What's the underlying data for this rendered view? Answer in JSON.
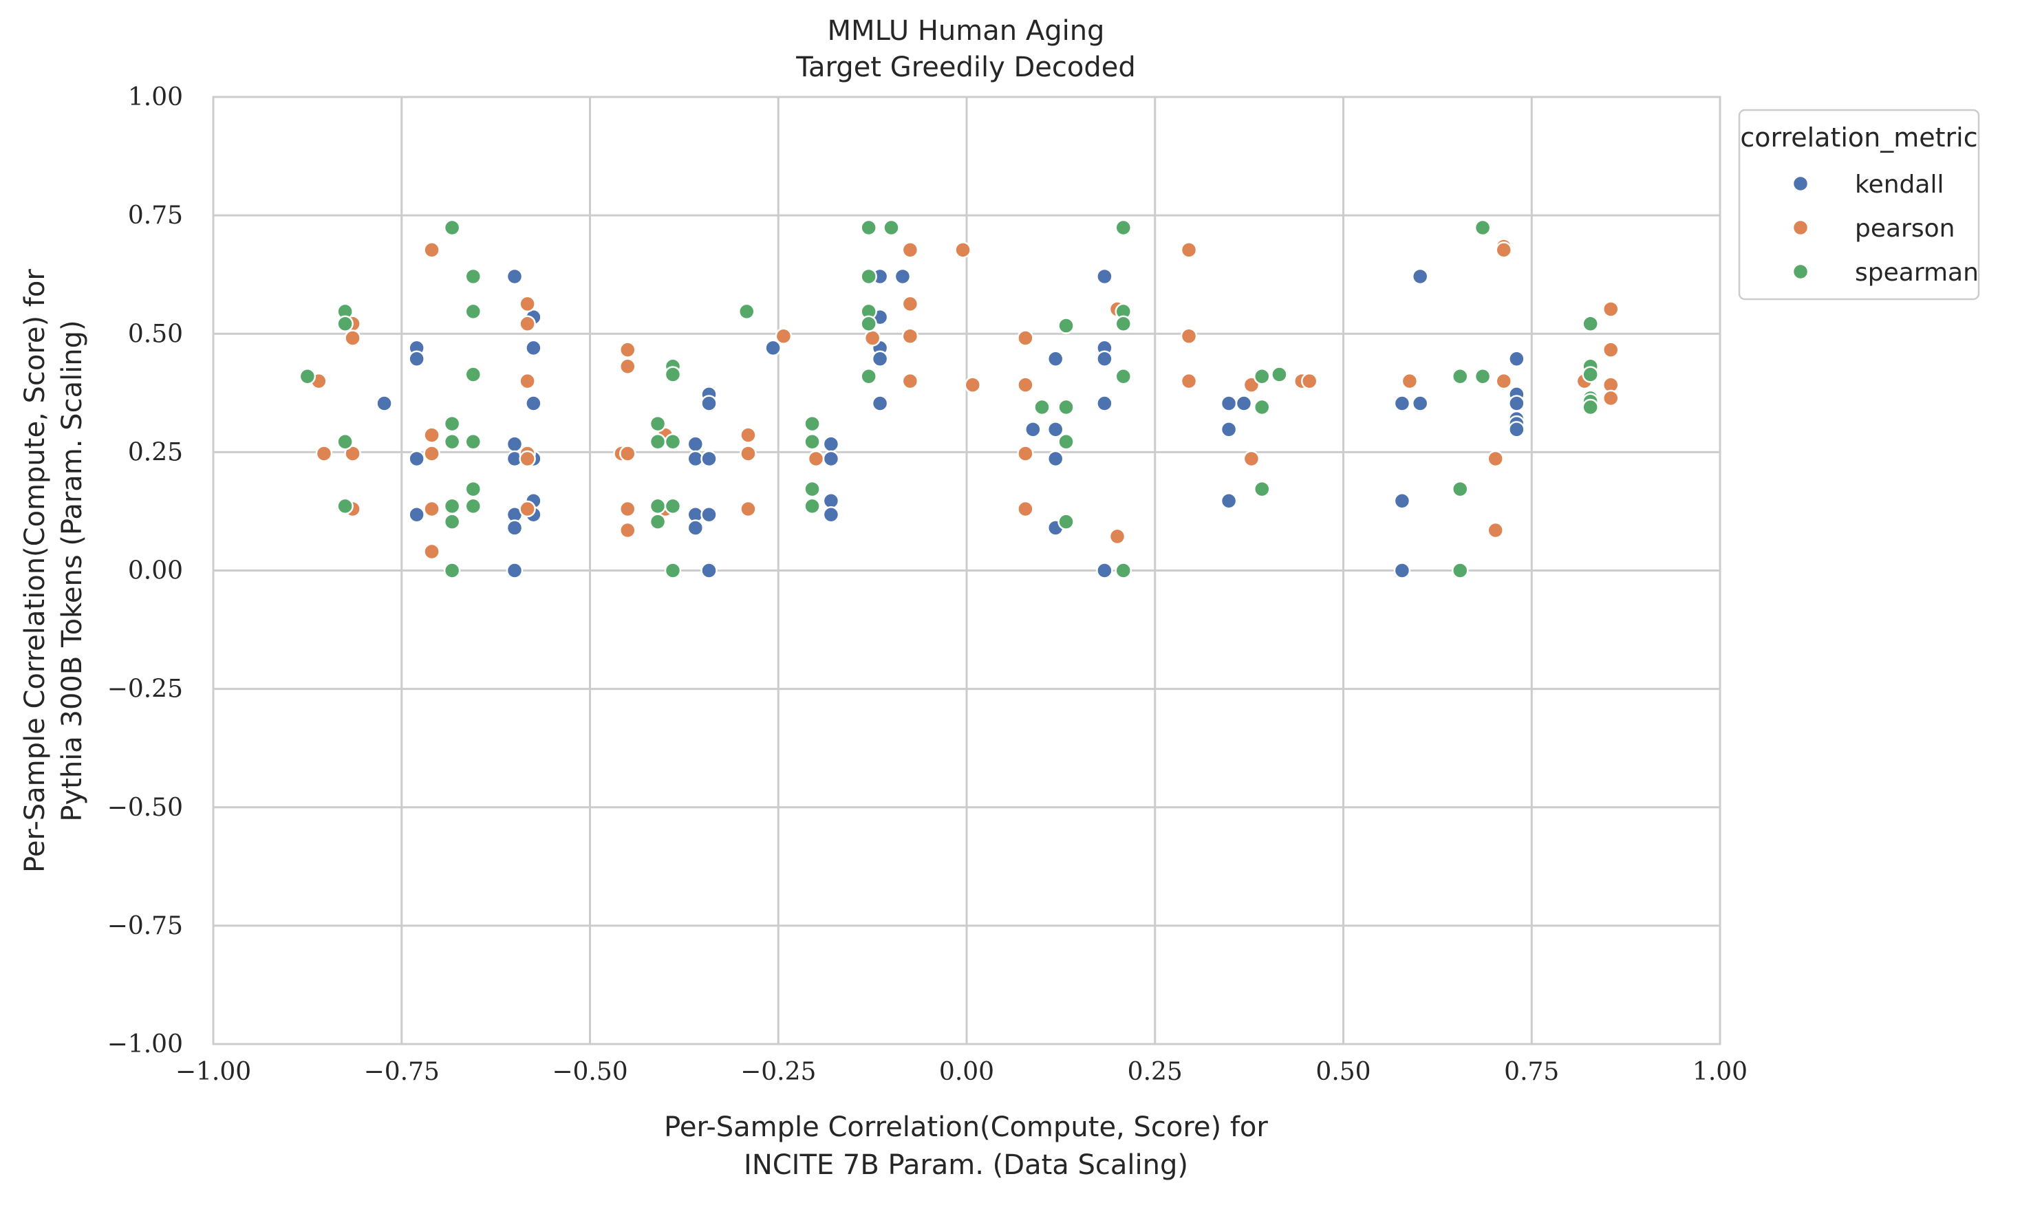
{
  "chart_data": {
    "type": "scatter",
    "title": "MMLU Human Aging",
    "subtitle": "Target Greedily Decoded",
    "xlabel_lines": [
      "Per-Sample Correlation(Compute, Score) for",
      "INCITE 7B Param. (Data Scaling)"
    ],
    "ylabel_lines": [
      "Per-Sample Correlation(Compute, Score) for",
      "Pythia 300B Tokens (Param. Scaling)"
    ],
    "xlim": [
      -1.0,
      1.0
    ],
    "ylim": [
      -1.0,
      1.0
    ],
    "xticks": [
      "−1.00",
      "−0.75",
      "−0.50",
      "−0.25",
      "0.00",
      "0.25",
      "0.50",
      "0.75",
      "1.00"
    ],
    "yticks": [
      "−1.00",
      "−0.75",
      "−0.50",
      "−0.25",
      "0.00",
      "0.25",
      "0.50",
      "0.75",
      "1.00"
    ],
    "grid": true,
    "legend": {
      "title": "correlation_metric",
      "placement": "outside-top-right"
    },
    "series": [
      {
        "name": "kendall",
        "color": "#4c72b0",
        "points": [
          [
            -0.773,
            0.353
          ],
          [
            -0.73,
            0.47
          ],
          [
            -0.73,
            0.447
          ],
          [
            -0.73,
            0.236
          ],
          [
            -0.73,
            0.118
          ],
          [
            -0.6,
            0.621
          ],
          [
            -0.6,
            0.267
          ],
          [
            -0.6,
            0.236
          ],
          [
            -0.6,
            0.118
          ],
          [
            -0.6,
            0.09
          ],
          [
            -0.6,
            0.0
          ],
          [
            -0.575,
            0.535
          ],
          [
            -0.575,
            0.47
          ],
          [
            -0.575,
            0.353
          ],
          [
            -0.575,
            0.236
          ],
          [
            -0.575,
            0.147
          ],
          [
            -0.575,
            0.118
          ],
          [
            -0.36,
            0.267
          ],
          [
            -0.36,
            0.236
          ],
          [
            -0.36,
            0.118
          ],
          [
            -0.36,
            0.09
          ],
          [
            -0.342,
            0.372
          ],
          [
            -0.342,
            0.353
          ],
          [
            -0.342,
            0.236
          ],
          [
            -0.342,
            0.118
          ],
          [
            -0.342,
            0.0
          ],
          [
            -0.257,
            0.47
          ],
          [
            -0.18,
            0.267
          ],
          [
            -0.18,
            0.236
          ],
          [
            -0.18,
            0.147
          ],
          [
            -0.18,
            0.118
          ],
          [
            -0.115,
            0.621
          ],
          [
            -0.115,
            0.535
          ],
          [
            -0.115,
            0.47
          ],
          [
            -0.115,
            0.447
          ],
          [
            -0.115,
            0.353
          ],
          [
            -0.085,
            0.621
          ],
          [
            0.088,
            0.298
          ],
          [
            0.118,
            0.447
          ],
          [
            0.118,
            0.298
          ],
          [
            0.118,
            0.236
          ],
          [
            0.118,
            0.09
          ],
          [
            0.183,
            0.621
          ],
          [
            0.183,
            0.47
          ],
          [
            0.183,
            0.447
          ],
          [
            0.183,
            0.353
          ],
          [
            0.183,
            0.0
          ],
          [
            0.348,
            0.353
          ],
          [
            0.348,
            0.298
          ],
          [
            0.348,
            0.147
          ],
          [
            0.368,
            0.353
          ],
          [
            0.578,
            0.353
          ],
          [
            0.578,
            0.147
          ],
          [
            0.578,
            0.0
          ],
          [
            0.602,
            0.621
          ],
          [
            0.602,
            0.353
          ],
          [
            0.73,
            0.447
          ],
          [
            0.73,
            0.372
          ],
          [
            0.73,
            0.353
          ],
          [
            0.73,
            0.32
          ],
          [
            0.73,
            0.31
          ],
          [
            0.73,
            0.298
          ]
        ]
      },
      {
        "name": "pearson",
        "color": "#dd8452",
        "points": [
          [
            -0.86,
            0.4
          ],
          [
            -0.853,
            0.247
          ],
          [
            -0.815,
            0.521
          ],
          [
            -0.815,
            0.491
          ],
          [
            -0.815,
            0.247
          ],
          [
            -0.815,
            0.13
          ],
          [
            -0.71,
            0.677
          ],
          [
            -0.71,
            0.286
          ],
          [
            -0.71,
            0.247
          ],
          [
            -0.71,
            0.13
          ],
          [
            -0.71,
            0.04
          ],
          [
            -0.583,
            0.563
          ],
          [
            -0.583,
            0.521
          ],
          [
            -0.583,
            0.4
          ],
          [
            -0.583,
            0.247
          ],
          [
            -0.583,
            0.236
          ],
          [
            -0.583,
            0.13
          ],
          [
            -0.458,
            0.247
          ],
          [
            -0.45,
            0.466
          ],
          [
            -0.45,
            0.431
          ],
          [
            -0.45,
            0.247
          ],
          [
            -0.45,
            0.13
          ],
          [
            -0.45,
            0.085
          ],
          [
            -0.4,
            0.286
          ],
          [
            -0.4,
            0.13
          ],
          [
            -0.29,
            0.286
          ],
          [
            -0.29,
            0.247
          ],
          [
            -0.29,
            0.13
          ],
          [
            -0.243,
            0.495
          ],
          [
            -0.2,
            0.236
          ],
          [
            -0.125,
            0.491
          ],
          [
            -0.075,
            0.677
          ],
          [
            -0.075,
            0.563
          ],
          [
            -0.075,
            0.495
          ],
          [
            -0.075,
            0.4
          ],
          [
            -0.005,
            0.677
          ],
          [
            0.008,
            0.392
          ],
          [
            0.078,
            0.491
          ],
          [
            0.078,
            0.392
          ],
          [
            0.078,
            0.247
          ],
          [
            0.078,
            0.13
          ],
          [
            0.2,
            0.552
          ],
          [
            0.2,
            0.072
          ],
          [
            0.295,
            0.677
          ],
          [
            0.295,
            0.495
          ],
          [
            0.295,
            0.4
          ],
          [
            0.378,
            0.392
          ],
          [
            0.378,
            0.236
          ],
          [
            0.445,
            0.4
          ],
          [
            0.455,
            0.4
          ],
          [
            0.588,
            0.4
          ],
          [
            0.702,
            0.236
          ],
          [
            0.702,
            0.085
          ],
          [
            0.713,
            0.684
          ],
          [
            0.713,
            0.677
          ],
          [
            0.713,
            0.4
          ],
          [
            0.82,
            0.4
          ],
          [
            0.855,
            0.552
          ],
          [
            0.855,
            0.466
          ],
          [
            0.855,
            0.392
          ],
          [
            0.855,
            0.364
          ]
        ]
      },
      {
        "name": "spearman",
        "color": "#55a868",
        "points": [
          [
            -0.875,
            0.41
          ],
          [
            -0.825,
            0.547
          ],
          [
            -0.825,
            0.521
          ],
          [
            -0.825,
            0.272
          ],
          [
            -0.825,
            0.136
          ],
          [
            -0.683,
            0.724
          ],
          [
            -0.683,
            0.31
          ],
          [
            -0.683,
            0.272
          ],
          [
            -0.683,
            0.136
          ],
          [
            -0.683,
            0.103
          ],
          [
            -0.683,
            0.0
          ],
          [
            -0.655,
            0.621
          ],
          [
            -0.655,
            0.547
          ],
          [
            -0.655,
            0.414
          ],
          [
            -0.655,
            0.272
          ],
          [
            -0.655,
            0.172
          ],
          [
            -0.655,
            0.136
          ],
          [
            -0.41,
            0.31
          ],
          [
            -0.41,
            0.272
          ],
          [
            -0.41,
            0.136
          ],
          [
            -0.41,
            0.103
          ],
          [
            -0.39,
            0.431
          ],
          [
            -0.39,
            0.414
          ],
          [
            -0.39,
            0.272
          ],
          [
            -0.39,
            0.136
          ],
          [
            -0.39,
            0.0
          ],
          [
            -0.292,
            0.547
          ],
          [
            -0.205,
            0.31
          ],
          [
            -0.205,
            0.272
          ],
          [
            -0.205,
            0.172
          ],
          [
            -0.205,
            0.136
          ],
          [
            -0.13,
            0.724
          ],
          [
            -0.13,
            0.621
          ],
          [
            -0.13,
            0.547
          ],
          [
            -0.13,
            0.521
          ],
          [
            -0.13,
            0.41
          ],
          [
            -0.1,
            0.724
          ],
          [
            0.1,
            0.345
          ],
          [
            0.132,
            0.517
          ],
          [
            0.132,
            0.345
          ],
          [
            0.132,
            0.272
          ],
          [
            0.132,
            0.103
          ],
          [
            0.208,
            0.724
          ],
          [
            0.208,
            0.547
          ],
          [
            0.208,
            0.521
          ],
          [
            0.208,
            0.41
          ],
          [
            0.208,
            0.0
          ],
          [
            0.392,
            0.41
          ],
          [
            0.392,
            0.345
          ],
          [
            0.392,
            0.172
          ],
          [
            0.415,
            0.414
          ],
          [
            0.655,
            0.41
          ],
          [
            0.655,
            0.172
          ],
          [
            0.655,
            0.0
          ],
          [
            0.685,
            0.724
          ],
          [
            0.685,
            0.41
          ],
          [
            0.828,
            0.521
          ],
          [
            0.828,
            0.431
          ],
          [
            0.828,
            0.414
          ],
          [
            0.828,
            0.364
          ],
          [
            0.828,
            0.357
          ],
          [
            0.828,
            0.345
          ]
        ]
      }
    ]
  }
}
